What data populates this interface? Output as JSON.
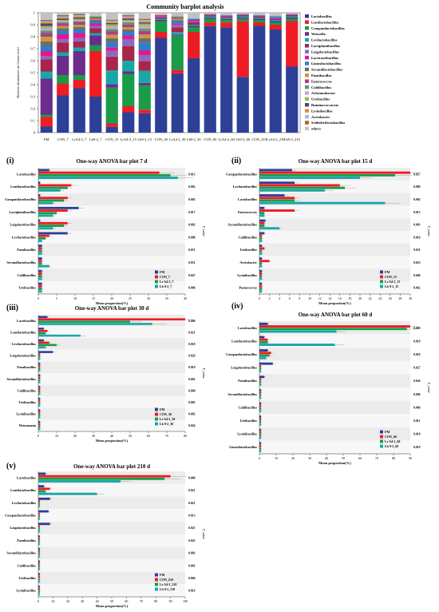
{
  "main": {
    "title": "Community barplot analysis",
    "ylabel": "Relative abundance on Genus level",
    "yticks": [
      "0",
      "0.1",
      "0.2",
      "0.3",
      "0.4",
      "0.5",
      "0.6",
      "0.7",
      "0.8",
      "0.9",
      "1"
    ],
    "samples": [
      "FM",
      "CON_7",
      "LrA4-2_7",
      "Lb9-2_7",
      "CON_15",
      "LrA4-2_15",
      "Lb9-2_15",
      "CON_30",
      "LrA4-2_30",
      "Lb9-2_30",
      "CON_60",
      "LrA4-2_60",
      "Lb9-2_60",
      "CON_210",
      "LrA4-2_210",
      "Lb9-2_210"
    ],
    "legend": [
      "Lactobacillus",
      "Lentilactobacillus",
      "Companilactobacillus",
      "Weissella",
      "Levilactobacillus",
      "Lactiplantibacillus",
      "Loigolactobacillus",
      "Lacticaseibacillus",
      "Limosilactobacillus",
      "Secundilactobacillus",
      "Paenibacillus",
      "Enterococcus",
      "Caldibacillus",
      "Achromobacter",
      "Ureibacillus",
      "Ruminococcaceae",
      "Lysinibacillus",
      "Acetobacter",
      "Schleiferilactobacillus",
      "others"
    ]
  },
  "colors": {
    "Lactobacillus": "#2e3f98",
    "Lentilactobacillus": "#ee1c24",
    "Companilactobacillus": "#1a9b48",
    "Weissella": "#6b2c8e",
    "Levilactobacillus": "#1aa6a6",
    "Lactiplantibacillus": "#a6264c",
    "Loigolactobacillus": "#8a6bbf",
    "Lacticaseibacillus": "#e5178c",
    "Limosilactobacillus": "#2a7fcc",
    "Secundilactobacillus": "#6d6d6d",
    "Paenibacillus": "#c89a3a",
    "Enterococcus": "#b23a8f",
    "Caldibacillus": "#4f9e6e",
    "Achromobacter": "#d7a0c8",
    "Ureibacillus": "#8fbf56",
    "Ruminococcaceae": "#5a3d7a",
    "Lysinibacillus": "#e38b3b",
    "Acetobacter": "#a0b8dd",
    "Schleiferilactobacillus": "#9a6e3c",
    "others": "#c2c2c2"
  },
  "chart_data": [
    {
      "type": "bar",
      "stacked": true,
      "title": "Community barplot analysis",
      "ylabel": "Relative abundance on Genus level",
      "ylim": [
        0,
        1
      ],
      "categories": [
        "FM",
        "CON_7",
        "LrA4-2_7",
        "Lb9-2_7",
        "CON_15",
        "LrA4-2_15",
        "Lb9-2_15",
        "CON_30",
        "LrA4-2_30",
        "Lb9-2_30",
        "CON_60",
        "LrA4-2_60",
        "Lb9-2_60",
        "CON_210",
        "LrA4-2_210",
        "Lb9-2_210"
      ],
      "series": [
        {
          "name": "Lactobacillus",
          "values": [
            0.05,
            0.31,
            0.37,
            0.3,
            0.05,
            0.17,
            0.16,
            0.79,
            0.49,
            0.62,
            0.88,
            0.87,
            0.46,
            0.89,
            0.86,
            0.55
          ]
        },
        {
          "name": "Lentilactobacillus",
          "values": [
            0.08,
            0.1,
            0.07,
            0.38,
            0.03,
            0.05,
            0.03,
            0.05,
            0.03,
            0.22,
            0.03,
            0.04,
            0.46,
            0.03,
            0.04,
            0.38
          ]
        },
        {
          "name": "Companilactobacillus",
          "values": [
            0.02,
            0.07,
            0.04,
            0.05,
            0.31,
            0.27,
            0.2,
            0.09,
            0.28,
            0.04,
            0.03,
            0.02,
            0.02,
            0.02,
            0.02,
            0.02
          ]
        },
        {
          "name": "Weissella",
          "values": [
            0.3,
            0.16,
            0.2,
            0.08,
            0.03,
            0.02,
            0.02,
            0.01,
            0.01,
            0.01,
            0.01,
            0.01,
            0.01,
            0.01,
            0.01,
            0.01
          ]
        },
        {
          "name": "Levilactobacillus",
          "values": [
            0.06,
            0.03,
            0.03,
            0.02,
            0.12,
            0.09,
            0.1,
            0.01,
            0.02,
            0.01,
            0.01,
            0.01,
            0.01,
            0.01,
            0.01,
            0.01
          ]
        },
        {
          "name": "Lactiplantibacillus",
          "values": [
            0.1,
            0.08,
            0.05,
            0.04,
            0.12,
            0.12,
            0.08,
            0.01,
            0.04,
            0.02,
            0.01,
            0.01,
            0.01,
            0.01,
            0.01,
            0.01
          ]
        },
        {
          "name": "Loigolactobacillus",
          "values": [
            0.03,
            0.03,
            0.03,
            0.02,
            0.05,
            0.06,
            0.05,
            0.01,
            0.02,
            0.01,
            0.01,
            0.01,
            0.01,
            0.01,
            0.01,
            0.01
          ]
        },
        {
          "name": "Lacticaseibacillus",
          "values": [
            0.04,
            0.04,
            0.04,
            0.02,
            0.03,
            0.03,
            0.04,
            0.01,
            0.01,
            0.01,
            0.0,
            0.0,
            0.0,
            0.0,
            0.0,
            0.0
          ]
        },
        {
          "name": "Limosilactobacillus",
          "values": [
            0.04,
            0.03,
            0.03,
            0.02,
            0.04,
            0.03,
            0.06,
            0.0,
            0.02,
            0.01,
            0.0,
            0.0,
            0.0,
            0.0,
            0.01,
            0.0
          ]
        },
        {
          "name": "Secundilactobacillus",
          "values": [
            0.04,
            0.02,
            0.02,
            0.01,
            0.04,
            0.02,
            0.04,
            0.0,
            0.01,
            0.0,
            0.0,
            0.0,
            0.0,
            0.0,
            0.0,
            0.0
          ]
        },
        {
          "name": "Paenibacillus",
          "values": [
            0.04,
            0.02,
            0.02,
            0.01,
            0.03,
            0.02,
            0.03,
            0.0,
            0.01,
            0.0,
            0.0,
            0.0,
            0.0,
            0.0,
            0.0,
            0.0
          ]
        },
        {
          "name": "Enterococcus",
          "values": [
            0.03,
            0.02,
            0.02,
            0.01,
            0.03,
            0.02,
            0.03,
            0.0,
            0.01,
            0.0,
            0.0,
            0.0,
            0.0,
            0.0,
            0.0,
            0.0
          ]
        },
        {
          "name": "Caldibacillus",
          "values": [
            0.02,
            0.01,
            0.01,
            0.01,
            0.02,
            0.02,
            0.02,
            0.0,
            0.01,
            0.0,
            0.0,
            0.0,
            0.0,
            0.0,
            0.0,
            0.0
          ]
        },
        {
          "name": "Achromobacter",
          "values": [
            0.02,
            0.01,
            0.01,
            0.0,
            0.02,
            0.01,
            0.02,
            0.0,
            0.0,
            0.0,
            0.0,
            0.0,
            0.0,
            0.0,
            0.0,
            0.0
          ]
        },
        {
          "name": "Ureibacillus",
          "values": [
            0.02,
            0.01,
            0.01,
            0.0,
            0.02,
            0.01,
            0.02,
            0.0,
            0.0,
            0.0,
            0.0,
            0.0,
            0.0,
            0.0,
            0.0,
            0.0
          ]
        },
        {
          "name": "Ruminococcaceae",
          "values": [
            0.02,
            0.01,
            0.01,
            0.0,
            0.01,
            0.01,
            0.01,
            0.0,
            0.0,
            0.0,
            0.0,
            0.0,
            0.0,
            0.0,
            0.0,
            0.0
          ]
        },
        {
          "name": "Lysinibacillus",
          "values": [
            0.01,
            0.01,
            0.01,
            0.0,
            0.01,
            0.01,
            0.01,
            0.0,
            0.0,
            0.0,
            0.0,
            0.0,
            0.0,
            0.0,
            0.0,
            0.0
          ]
        },
        {
          "name": "Acetobacter",
          "values": [
            0.01,
            0.01,
            0.01,
            0.0,
            0.01,
            0.01,
            0.01,
            0.0,
            0.0,
            0.0,
            0.0,
            0.0,
            0.0,
            0.0,
            0.0,
            0.0
          ]
        },
        {
          "name": "Schleiferilactobacillus",
          "values": [
            0.01,
            0.01,
            0.01,
            0.0,
            0.01,
            0.01,
            0.01,
            0.0,
            0.0,
            0.0,
            0.0,
            0.0,
            0.0,
            0.0,
            0.0,
            0.0
          ]
        },
        {
          "name": "others",
          "values": [
            0.06,
            0.02,
            0.01,
            0.03,
            0.06,
            0.02,
            0.05,
            0.02,
            0.03,
            0.05,
            0.01,
            0.02,
            0.01,
            0.02,
            0.03,
            0.01
          ]
        }
      ]
    }
  ],
  "panels": [
    {
      "label": "(i)",
      "title": "One-way ANOVA bar plot 7 d",
      "genera": [
        "Lactobacillus",
        "Lentilactobacillus",
        "Companilactobacillus",
        "Lactiplantibacillus",
        "Loigolactobacillus",
        "Levilactobacillus",
        "Paenibacillus",
        "Secundilactobacillus",
        "Caldibacillus",
        "Ureibacillus"
      ],
      "pvals": [
        "0.013",
        "0.002",
        "0.002",
        "0.017",
        "0.002",
        "0.008",
        "0.031",
        "0.031",
        "0.047",
        "0.006"
      ],
      "xticks": [
        "0",
        "5",
        "10",
        "15",
        "20",
        "25",
        "30",
        "35",
        "40"
      ],
      "xmax": 40,
      "groups": [
        "FM",
        "CON_7",
        "Lr A4-2_7",
        "Lb 9-2_7"
      ],
      "values": [
        [
          3,
          33,
          36,
          38
        ],
        [
          0.5,
          9,
          8,
          6
        ],
        [
          0.5,
          8,
          7,
          4
        ],
        [
          11,
          8,
          5,
          4
        ],
        [
          0.5,
          8,
          7,
          4
        ],
        [
          8,
          3,
          2,
          1
        ],
        [
          1,
          1,
          1,
          1
        ],
        [
          1,
          1,
          1,
          3
        ],
        [
          1,
          1,
          1,
          1
        ],
        [
          1,
          1,
          1,
          1
        ]
      ]
    },
    {
      "label": "(ii)",
      "title": "One-way ANOVA bar plot 15 d",
      "genera": [
        "Companilactobacillus",
        "Levilactobacillus",
        "Lactobacillus",
        "Enterococcus",
        "Secundilactobacillus",
        "Caldibacillus",
        "Ureibacillus",
        "Acetobacter",
        "Lysinibacillus",
        "Paenococcus"
      ],
      "pvals": [
        "0.027",
        "0.009",
        "0.002",
        "0.013",
        "0.003",
        "0.016",
        "0.031",
        "0.023",
        "0.040",
        "0.042"
      ],
      "xticks": [
        "0",
        "2",
        "4",
        "6",
        "8",
        "10",
        "12",
        "14",
        "16",
        "18",
        "20",
        "22",
        "24",
        "26",
        "28",
        "30"
      ],
      "xmax": 30,
      "groups": [
        "FM",
        "CON_15",
        "Lr A4-2_15",
        "Lb 9-2_15"
      ],
      "values": [
        [
          6.5,
          30,
          27,
          20
        ],
        [
          7,
          16,
          17,
          13
        ],
        [
          5,
          7,
          7,
          25
        ],
        [
          1,
          7,
          1,
          1
        ],
        [
          1.2,
          1,
          1,
          4
        ],
        [
          1,
          0.5,
          0.5,
          0.5
        ],
        [
          0.5,
          1,
          0.5,
          0.5
        ],
        [
          0.5,
          2,
          0.5,
          0.5
        ],
        [
          0.5,
          0.5,
          0.5,
          0.5
        ],
        [
          0.5,
          0.5,
          0.5,
          0.5
        ]
      ]
    },
    {
      "label": "(iii)",
      "title": "One-way ANOVA bar plot 30 d",
      "genera": [
        "Lactobacillus",
        "Lentilactobacillus",
        "Levilactobacillus",
        "Loigolactobacillus",
        "Paenibacillus",
        "Secundilactobacillus",
        "Caldibacillus",
        "Ureibacillus",
        "Lysinibacillus",
        "Weissmania"
      ],
      "pvals": [
        "0.000",
        "0.021",
        "0.018",
        "0.026",
        "0.019",
        "0.001",
        "0.008",
        "0.005",
        "0.002",
        "0.024"
      ],
      "xticks": [
        "0",
        "10",
        "20",
        "30",
        "40",
        "50",
        "60",
        "70",
        "80"
      ],
      "xmax": 80,
      "groups": [
        "FM",
        "CON_30",
        "Lr A4-2_30",
        "Lb 9-2_30"
      ],
      "values": [
        [
          5,
          80,
          50,
          62
        ],
        [
          3,
          5,
          4,
          23
        ],
        [
          3,
          6,
          10,
          4
        ],
        [
          8,
          1,
          1,
          1
        ],
        [
          1,
          1,
          1,
          1
        ],
        [
          1,
          1,
          1,
          1
        ],
        [
          1,
          1,
          1,
          1
        ],
        [
          1,
          1,
          1,
          1
        ],
        [
          1,
          1,
          1,
          1
        ],
        [
          1,
          1,
          1,
          1
        ]
      ]
    },
    {
      "label": "(iv)",
      "title": "One-way ANOVA bar plot 60 d",
      "genera": [
        "Lactobacillus",
        "Lentilactobacillus",
        "Companilactobacillus",
        "Loigolactobacillus",
        "Paenibacillus",
        "Secundilactobacillus",
        "Caldibacillus",
        "Ureibacillus",
        "Lysinibacillus",
        "Limosilactobacillus"
      ],
      "pvals": [
        "0.000",
        "0.019",
        "0.019",
        "0.027",
        "0.026",
        "0.000",
        "0.006",
        "0.011",
        "0.010",
        "0.019"
      ],
      "xticks": [
        "0",
        "10",
        "20",
        "30",
        "40",
        "50",
        "60",
        "70",
        "80",
        "90"
      ],
      "xmax": 90,
      "groups": [
        "FM",
        "CON_60",
        "Lr A4-2_60",
        "Lb 9-2_60"
      ],
      "values": [
        [
          5,
          90,
          88,
          46
        ],
        [
          3,
          5,
          5,
          45
        ],
        [
          5,
          7,
          6,
          4
        ],
        [
          8,
          1,
          1,
          1
        ],
        [
          3,
          1,
          1,
          1
        ],
        [
          1,
          1,
          1,
          1
        ],
        [
          1,
          1,
          1,
          1
        ],
        [
          1,
          1,
          1,
          1
        ],
        [
          1,
          1,
          1,
          1
        ],
        [
          1,
          1,
          1,
          1
        ]
      ]
    },
    {
      "label": "(v)",
      "title": "One-way ANOVA bar plot 210 d",
      "genera": [
        "Lactobacillus",
        "Lentilactobacillus",
        "Levilactobacillus",
        "Companilactobacillus",
        "Loigolactobacillus",
        "Paenibacillus",
        "Secundilactobacillus",
        "Caldibacillus",
        "Ureibacillus",
        "Lysinibacillus"
      ],
      "pvals": [
        "0.000",
        "0.021",
        "0.021",
        "0.013",
        "0.021",
        "0.023",
        "0.003",
        "0.001",
        "0.006",
        "0.016"
      ],
      "xticks": [
        "0",
        "10",
        "20",
        "30",
        "40",
        "50",
        "60",
        "70",
        "80",
        "90",
        "100"
      ],
      "xmax": 100,
      "groups": [
        "FM",
        "CON_210",
        "Lr A4-2_210",
        "Lb 9-2_210"
      ],
      "values": [
        [
          5,
          90,
          86,
          56
        ],
        [
          4,
          8,
          5,
          40
        ],
        [
          8,
          1,
          1,
          1
        ],
        [
          7,
          1,
          1,
          1
        ],
        [
          8,
          1,
          1,
          1
        ],
        [
          1,
          1,
          1,
          1
        ],
        [
          1,
          1,
          1,
          1
        ],
        [
          1,
          1,
          1,
          1
        ],
        [
          1,
          1,
          1,
          1
        ],
        [
          1,
          1,
          1,
          1
        ]
      ]
    }
  ],
  "common": {
    "xlabel": "Mean proportion(%)",
    "pvalue_label": "P_value",
    "group_colors": [
      "#2e3f98",
      "#ee1c24",
      "#1a9b48",
      "#1aa6a6"
    ]
  }
}
